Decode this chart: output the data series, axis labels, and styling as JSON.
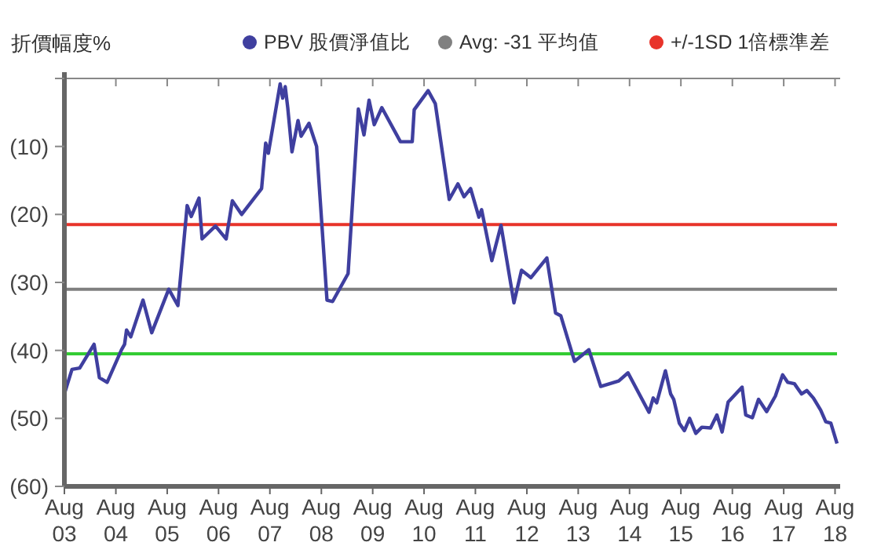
{
  "chart_data": {
    "type": "line",
    "ylabel": "折價幅度%",
    "legend": "top right",
    "marker": "none",
    "line_style": "solid",
    "grid": false,
    "xlim": [
      "2003-08-01",
      "2018-08-15"
    ],
    "ylim": [
      -60,
      0
    ],
    "xticks": [
      {
        "value": "2003-08-01",
        "label": "Aug 03"
      },
      {
        "value": "2004-08-01",
        "label": "Aug 04"
      },
      {
        "value": "2005-08-01",
        "label": "Aug 05"
      },
      {
        "value": "2006-08-01",
        "label": "Aug 06"
      },
      {
        "value": "2007-08-01",
        "label": "Aug 07"
      },
      {
        "value": "2008-08-01",
        "label": "Aug 08"
      },
      {
        "value": "2009-08-01",
        "label": "Aug 09"
      },
      {
        "value": "2010-08-01",
        "label": "Aug 10"
      },
      {
        "value": "2011-08-01",
        "label": "Aug 11"
      },
      {
        "value": "2012-08-01",
        "label": "Aug 12"
      },
      {
        "value": "2013-08-01",
        "label": "Aug 13"
      },
      {
        "value": "2014-08-01",
        "label": "Aug 14"
      },
      {
        "value": "2015-08-01",
        "label": "Aug 15"
      },
      {
        "value": "2016-08-01",
        "label": "Aug 16"
      },
      {
        "value": "2017-08-01",
        "label": "Aug 17"
      },
      {
        "value": "2018-08-01",
        "label": "Aug 18"
      }
    ],
    "yticks": [
      {
        "value": 0,
        "label": null
      },
      {
        "value": -10,
        "label": "(10)"
      },
      {
        "value": -20,
        "label": "(20)"
      },
      {
        "value": -30,
        "label": "(30)"
      },
      {
        "value": -40,
        "label": "(40)"
      },
      {
        "value": -50,
        "label": "(50)"
      },
      {
        "value": -60,
        "label": "(60)"
      }
    ],
    "ref_lines": [
      {
        "axis": "y",
        "value": -31,
        "label": "Avg: -31 平均值",
        "color": "#808080"
      },
      {
        "axis": "y",
        "value": -21.5,
        "label": "+/-1SD 1倍標準差",
        "color": "#e8332a"
      },
      {
        "axis": "y",
        "value": -40.5,
        "label": null,
        "color": "#33cc33"
      }
    ],
    "series": [
      {
        "name": "PBV 股價淨值比",
        "color": "#3f3f9f",
        "x": [
          "2003-08-01",
          "2003-09-24",
          "2003-11-18",
          "2004-02-28",
          "2004-04-06",
          "2004-05-31",
          "2004-09-10",
          "2004-10-02",
          "2004-10-16",
          "2004-11-15",
          "2005-02-10",
          "2005-04-13",
          "2005-08-12",
          "2005-10-16",
          "2005-12-21",
          "2006-01-19",
          "2006-03-15",
          "2006-04-06",
          "2006-07-10",
          "2006-09-24",
          "2006-11-07",
          "2007-01-12",
          "2007-06-03",
          "2007-07-02",
          "2007-07-21",
          "2007-10-13",
          "2007-10-31",
          "2007-11-18",
          "2007-12-06",
          "2008-01-05",
          "2008-02-17",
          "2008-03-10",
          "2008-05-05",
          "2008-06-28",
          "2008-09-10",
          "2008-10-20",
          "2009-02-07",
          "2009-04-21",
          "2009-05-31",
          "2009-07-06",
          "2009-08-12",
          "2009-10-05",
          "2010-02-14",
          "2010-05-09",
          "2010-05-23",
          "2010-08-30",
          "2010-10-20",
          "2011-01-27",
          "2011-03-30",
          "2011-05-12",
          "2011-06-28",
          "2011-08-26",
          "2011-09-14",
          "2011-11-26",
          "2012-01-30",
          "2012-05-01",
          "2012-06-24",
          "2012-08-30",
          "2012-12-21",
          "2013-02-21",
          "2013-03-30",
          "2013-07-06",
          "2013-10-16",
          "2014-01-08",
          "2014-05-16",
          "2014-07-21",
          "2014-12-17",
          "2015-01-16",
          "2015-02-10",
          "2015-04-13",
          "2015-05-20",
          "2015-06-11",
          "2015-07-21",
          "2015-08-26",
          "2015-10-02",
          "2015-11-15",
          "2015-12-28",
          "2016-02-28",
          "2016-04-13",
          "2016-05-20",
          "2016-07-02",
          "2016-10-09",
          "2016-11-04",
          "2016-12-21",
          "2017-02-03",
          "2017-04-02",
          "2017-06-03",
          "2017-07-24",
          "2017-08-30",
          "2017-10-16",
          "2017-12-06",
          "2018-01-12",
          "2018-02-28",
          "2018-04-21",
          "2018-05-27",
          "2018-07-02",
          "2018-08-15"
        ],
        "values": [
          -46.4,
          -42.8,
          -42.6,
          -39.1,
          -44,
          -44.7,
          -39.9,
          -39.1,
          -37,
          -38,
          -32.6,
          -37.4,
          -31,
          -33.4,
          -18.7,
          -20.3,
          -17.6,
          -23.6,
          -21.7,
          -23.6,
          -18,
          -20,
          -16.2,
          -9.5,
          -11,
          -0.8,
          -2.9,
          -1.2,
          -4.3,
          -10.8,
          -6.2,
          -8.5,
          -6.6,
          -10,
          -32.6,
          -32.8,
          -28.7,
          -4.5,
          -8.3,
          -3.2,
          -6.8,
          -4.3,
          -9.3,
          -9.3,
          -4.6,
          -1.8,
          -3.7,
          -17.8,
          -15.5,
          -17.4,
          -16.2,
          -20.4,
          -19.3,
          -26.8,
          -21.6,
          -33,
          -28.2,
          -29.3,
          -26.4,
          -34.5,
          -34.9,
          -41.6,
          -39.9,
          -45.3,
          -44.5,
          -43.3,
          -49.1,
          -47,
          -47.7,
          -43,
          -46.4,
          -47.2,
          -50.7,
          -51.8,
          -50,
          -52.2,
          -51.3,
          -51.4,
          -49.5,
          -52,
          -47.6,
          -45.4,
          -49.5,
          -49.9,
          -47.2,
          -49,
          -46.7,
          -43.6,
          -44.7,
          -44.9,
          -46.4,
          -45.9,
          -47,
          -48.8,
          -50.5,
          -50.7,
          -53.7
        ]
      }
    ]
  }
}
